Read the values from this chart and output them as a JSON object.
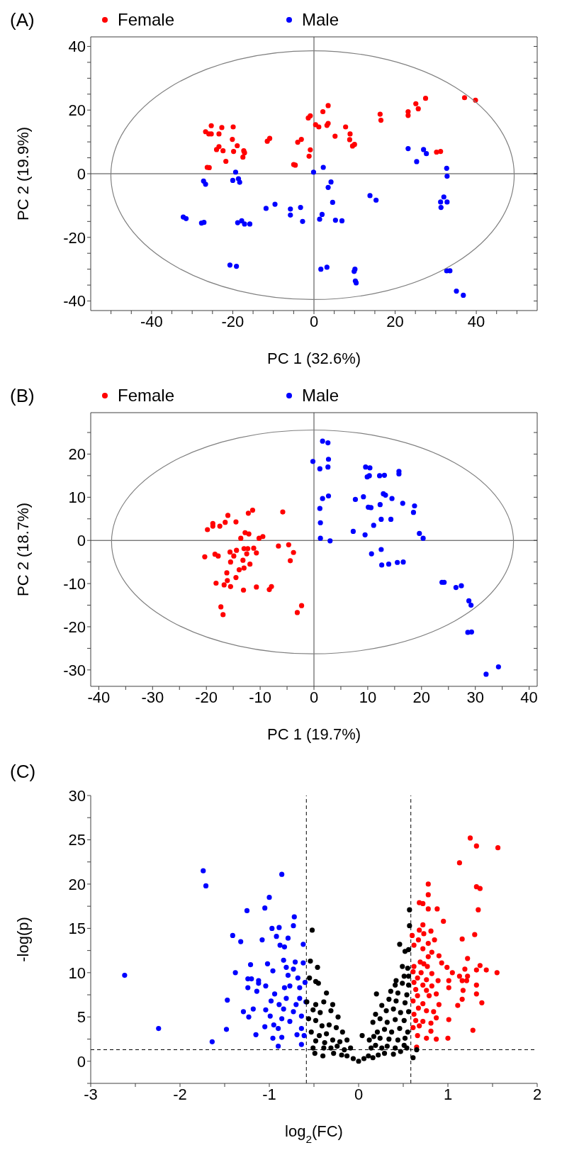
{
  "chart_data": [
    {
      "type": "scatter",
      "title": "(A)",
      "xlabel": "PC 1 (32.6%)",
      "ylabel": "PC 2 (19.9%)",
      "legend": "top",
      "marker": "circle",
      "xlim": [
        -55,
        55
      ],
      "ylim": [
        -43,
        43
      ],
      "xticks": [
        {
          "value": -50,
          "label": null
        },
        {
          "value": -45,
          "label": null
        },
        -40,
        {
          "value": -35,
          "label": null
        },
        {
          "value": -30,
          "label": null
        },
        {
          "value": -25,
          "label": null
        },
        -20,
        {
          "value": -15,
          "label": null
        },
        {
          "value": -10,
          "label": null
        },
        {
          "value": -5,
          "label": null
        },
        0,
        {
          "value": 5,
          "label": null
        },
        {
          "value": 10,
          "label": null
        },
        {
          "value": 15,
          "label": null
        },
        20,
        {
          "value": 25,
          "label": null
        },
        {
          "value": 30,
          "label": null
        },
        {
          "value": 35,
          "label": null
        },
        40,
        {
          "value": 45,
          "label": null
        },
        {
          "value": 50,
          "label": null
        }
      ],
      "yticks": [
        -40,
        {
          "value": -35,
          "label": null
        },
        {
          "value": -30,
          "label": null
        },
        {
          "value": -25,
          "label": null
        },
        -20,
        {
          "value": -15,
          "label": null
        },
        {
          "value": -10,
          "label": null
        },
        {
          "value": -5,
          "label": null
        },
        0,
        {
          "value": 5,
          "label": null
        },
        {
          "value": 10,
          "label": null
        },
        {
          "value": 15,
          "label": null
        },
        20,
        {
          "value": 25,
          "label": null
        },
        {
          "value": 30,
          "label": null
        },
        {
          "value": 35,
          "label": null
        },
        40
      ],
      "ref_lines": [
        {
          "axis": "x",
          "value": 0,
          "color": "#404040"
        },
        {
          "axis": "y",
          "value": 0,
          "color": "#404040"
        }
      ],
      "series": [
        {
          "name": "Female",
          "color": "#ff0000",
          "x": [
            -25.3,
            -26.7,
            -25.9,
            -25.3,
            -22.7,
            -23.4,
            -19.9,
            -20.1,
            -18.9,
            -19.8,
            -24.0,
            -23.4,
            -22.4,
            -21.7,
            -26.3,
            -25.8,
            -17.3,
            -17.1,
            -17.5,
            -11.5,
            -10.9,
            -4.0,
            -3.1,
            -5.0,
            -4.6,
            -1.4,
            -0.9,
            -0.9,
            -1.2,
            0.4,
            1.2,
            2.2,
            3.5,
            3.2,
            3.5,
            5.2,
            7.8,
            8.9,
            8.8,
            9.5,
            10.0,
            16.3,
            16.5,
            23.2,
            23.2,
            25.1,
            25.7,
            27.5,
            30.2,
            31.2,
            37.1,
            39.8
          ],
          "values": [
            15.1,
            13.2,
            12.5,
            12.5,
            14.5,
            12.5,
            14.7,
            10.8,
            8.8,
            7.0,
            7.6,
            8.5,
            7.2,
            3.9,
            2.0,
            1.9,
            7.2,
            6.6,
            5.2,
            10.2,
            11.1,
            9.9,
            10.8,
            2.9,
            2.7,
            17.5,
            18.2,
            7.5,
            5.5,
            15.4,
            14.7,
            19.5,
            21.4,
            15.2,
            15.8,
            11.8,
            14.7,
            12.5,
            10.7,
            8.7,
            9.2,
            18.7,
            16.8,
            19.5,
            18.3,
            22.0,
            20.4,
            23.7,
            6.8,
            7.0,
            23.9,
            23.1
          ]
        },
        {
          "name": "Male",
          "color": "#0000ff",
          "x": [
            -27.2,
            -26.7,
            -19.3,
            -20.0,
            -18.6,
            -18.3,
            -32.2,
            -31.5,
            -27.7,
            -27.1,
            -18.8,
            -17.8,
            -17.1,
            -15.8,
            -20.7,
            -19.1,
            -11.8,
            -9.6,
            -5.8,
            -5.8,
            -3.3,
            -2.8,
            -0.1,
            2.3,
            4.2,
            3.5,
            4.6,
            2.0,
            1.4,
            5.3,
            6.9,
            1.7,
            3.2,
            13.8,
            15.3,
            10.1,
            9.9,
            10.2,
            10.4,
            23.2,
            25.3,
            27.0,
            27.7,
            32.7,
            32.8,
            32.0,
            31.2,
            32.8,
            31.3,
            32.7,
            33.5,
            35.1,
            36.8
          ],
          "values": [
            -2.3,
            -3.3,
            0.5,
            -2.1,
            -1.6,
            -2.7,
            -13.6,
            -14.1,
            -15.5,
            -15.3,
            -15.4,
            -14.8,
            -15.8,
            -15.8,
            -28.7,
            -29.1,
            -10.9,
            -9.6,
            -11.1,
            -13.0,
            -10.6,
            -15.0,
            0.5,
            2.0,
            -2.6,
            -4.3,
            -9.0,
            -12.8,
            -14.3,
            -14.6,
            -14.8,
            -30.0,
            -29.4,
            -6.9,
            -8.3,
            -30.0,
            -30.7,
            -33.7,
            -34.3,
            7.9,
            3.8,
            7.6,
            6.3,
            1.7,
            -0.8,
            -7.3,
            -8.9,
            -8.9,
            -10.6,
            -30.5,
            -30.5,
            -36.9,
            -38.2
          ]
        }
      ]
    },
    {
      "type": "scatter",
      "title": "(B)",
      "xlabel": "PC 1 (19.7%)",
      "ylabel": "PC 2 (18.7%)",
      "legend": "top",
      "marker": "circle",
      "xlim": [
        -41.5,
        41.5
      ],
      "ylim": [
        -33.8,
        29.6
      ],
      "xticks": [
        -40,
        {
          "value": -35,
          "label": null
        },
        -30,
        {
          "value": -25,
          "label": null
        },
        -20,
        {
          "value": -15,
          "label": null
        },
        -10,
        {
          "value": -5,
          "label": null
        },
        0,
        {
          "value": 5,
          "label": null
        },
        10,
        {
          "value": 15,
          "label": null
        },
        20,
        {
          "value": 25,
          "label": null
        },
        30,
        {
          "value": 35,
          "label": null
        },
        40
      ],
      "yticks": [
        -30,
        {
          "value": -25,
          "label": null
        },
        -20,
        {
          "value": -15,
          "label": null
        },
        -10,
        {
          "value": -5,
          "label": null
        },
        0,
        {
          "value": 5,
          "label": null
        },
        10,
        {
          "value": 15,
          "label": null
        },
        20,
        {
          "value": 25,
          "label": null
        }
      ],
      "ref_lines": [
        {
          "axis": "x",
          "value": 0,
          "color": "#404040"
        },
        {
          "axis": "y",
          "value": 0,
          "color": "#404040"
        }
      ],
      "series": [
        {
          "name": "Female",
          "color": "#ff0000",
          "x": [
            -19.8,
            -18.8,
            -18.8,
            -17.5,
            -16.5,
            -16.0,
            -14.5,
            -12.2,
            -11.4,
            -5.8,
            -12.8,
            -12.1,
            -13.6,
            -10.2,
            -9.5,
            -20.3,
            -18.4,
            -17.8,
            -15.6,
            -14.4,
            -14.9,
            -13.0,
            -12.3,
            -12.5,
            -11.2,
            -10.7,
            -6.6,
            -4.7,
            -3.8,
            -4.4,
            -15.5,
            -13.2,
            -13.9,
            -13.0,
            -11.9,
            -16.2,
            -16.1,
            -14.5,
            -18.2,
            -16.7,
            -15.5,
            -13.1,
            -10.7,
            -7.9,
            -8.3,
            -17.3,
            -16.9,
            -2.3,
            -3.1
          ],
          "values": [
            2.5,
            3.9,
            3.3,
            3.3,
            4.2,
            5.8,
            4.3,
            6.3,
            7.0,
            6.6,
            1.8,
            1.5,
            0.5,
            0.5,
            0.9,
            -3.8,
            -3.2,
            -3.6,
            -2.7,
            -2.3,
            -3.6,
            -1.9,
            -1.9,
            -3.1,
            -1.8,
            -2.9,
            -1.3,
            -1.0,
            -2.8,
            -4.7,
            -5.0,
            -4.6,
            -6.8,
            -6.4,
            -5.5,
            -7.5,
            -9.3,
            -8.6,
            -9.9,
            -10.3,
            -10.7,
            -11.5,
            -10.8,
            -10.7,
            -11.4,
            -15.4,
            -17.2,
            -15.1,
            -16.7
          ]
        },
        {
          "name": "Male",
          "color": "#0000ff",
          "x": [
            1.6,
            2.6,
            -0.2,
            2.7,
            1.1,
            2.6,
            9.6,
            10.4,
            9.9,
            10.3,
            12.2,
            13.1,
            15.8,
            15.8,
            1.6,
            2.7,
            7.7,
            9.2,
            12.9,
            13.3,
            14.5,
            10.1,
            10.6,
            12.3,
            16.5,
            18.7,
            18.5,
            1.1,
            1.2,
            11.1,
            12.5,
            14.3,
            7.3,
            9.5,
            1.2,
            3.0,
            19.6,
            20.3,
            10.7,
            12.5,
            12.6,
            13.9,
            15.5,
            16.6,
            23.8,
            24.2,
            26.4,
            27.4,
            28.8,
            29.2,
            28.6,
            29.3,
            32.0,
            34.3
          ],
          "values": [
            23.0,
            22.6,
            18.3,
            18.8,
            16.6,
            17.0,
            17.0,
            16.8,
            14.7,
            15.0,
            15.0,
            15.1,
            16.0,
            15.4,
            9.7,
            10.3,
            9.5,
            10.1,
            10.8,
            10.5,
            9.7,
            7.7,
            7.6,
            8.3,
            8.6,
            8.0,
            6.5,
            7.4,
            4.1,
            3.5,
            4.9,
            4.9,
            2.1,
            1.3,
            0.5,
            -0.1,
            1.6,
            0.5,
            -3.1,
            -2.1,
            -5.7,
            -5.5,
            -5.1,
            -5.0,
            -9.7,
            -9.7,
            -10.9,
            -10.5,
            -14.0,
            -15.0,
            -21.3,
            -21.2,
            -31.0,
            -29.3
          ]
        }
      ]
    },
    {
      "type": "scatter",
      "title": "(C)",
      "xlabel": "log$_{2}$(FC)",
      "ylabel": "-log(p)",
      "marker": "circle",
      "xlim": [
        -3,
        2
      ],
      "ylim": [
        -2.5,
        30
      ],
      "xticks": [
        -3,
        {
          "value": -2.5,
          "label": null
        },
        -2,
        {
          "value": -1.5,
          "label": null
        },
        -1,
        {
          "value": -0.5,
          "label": null
        },
        0,
        {
          "value": 0.5,
          "label": null
        },
        1,
        {
          "value": 1.5,
          "label": null
        },
        2
      ],
      "yticks": [
        {
          "value": -2.5,
          "label": null
        },
        0,
        {
          "value": 2.5,
          "label": null
        },
        5,
        {
          "value": 7.5,
          "label": null
        },
        10,
        {
          "value": 12.5,
          "label": null
        },
        15,
        {
          "value": 17.5,
          "label": null
        },
        20,
        {
          "value": 22.5,
          "label": null
        },
        25,
        {
          "value": 27.5,
          "label": null
        },
        30
      ],
      "ref_lines": [
        {
          "axis": "x",
          "value": -0.585,
          "color": "#000000",
          "line_style": "dashed"
        },
        {
          "axis": "x",
          "value": 0.585,
          "color": "#000000",
          "line_style": "dashed"
        },
        {
          "axis": "y",
          "value": 1.3,
          "color": "#000000",
          "line_style": "dashed"
        }
      ],
      "series": [
        {
          "color": "#0000ff",
          "x": [
            -1.74,
            -1.71,
            -0.86,
            -1.0,
            -1.25,
            -1.05,
            -0.72,
            -0.73,
            -0.97,
            -0.89,
            -1.41,
            -1.32,
            -1.08,
            -0.92,
            -0.79,
            -0.88,
            -0.83,
            -0.62,
            -0.84,
            -1.02,
            -1.21,
            -0.71,
            -0.62,
            -0.81,
            -0.96,
            -0.73,
            -1.38,
            -2.62,
            -0.79,
            -0.68,
            -1.24,
            -1.2,
            -1.12,
            -1.12,
            -1.04,
            -1.24,
            -0.83,
            -0.66,
            -1.14,
            -0.77,
            -0.6,
            -0.94,
            -0.66,
            -0.81,
            -1.47,
            -0.98,
            -0.89,
            -0.7,
            -0.59,
            -1.18,
            -1.04,
            -0.84,
            -0.73,
            -1.29,
            -0.64,
            -1.23,
            -0.99,
            -0.86,
            -0.77,
            -0.95,
            -1.05,
            -0.9,
            -0.64,
            -2.24,
            -1.48,
            -1.15,
            -0.69,
            -0.96,
            -0.86,
            -0.61,
            -1.64,
            -0.64,
            -0.9
          ],
          "values": [
            21.5,
            19.8,
            21.1,
            18.5,
            17.0,
            17.3,
            16.3,
            15.3,
            15.0,
            15.1,
            14.2,
            13.5,
            13.7,
            14.1,
            13.9,
            13.1,
            12.9,
            13.2,
            11.4,
            11.0,
            10.9,
            11.2,
            11.1,
            10.6,
            10.2,
            10.4,
            10.0,
            9.7,
            9.7,
            9.4,
            9.3,
            9.3,
            9.1,
            8.8,
            8.5,
            8.3,
            8.3,
            8.3,
            7.9,
            8.5,
            8.9,
            7.6,
            7.1,
            7.1,
            6.9,
            6.8,
            6.4,
            6.4,
            6.7,
            5.9,
            5.8,
            5.9,
            5.6,
            5.6,
            5.1,
            5.0,
            5.1,
            4.8,
            4.5,
            4.1,
            3.9,
            3.7,
            3.7,
            3.7,
            3.6,
            3.0,
            3.0,
            2.6,
            2.7,
            2.9,
            2.2,
            1.9,
            1.7
          ]
        },
        {
          "color": "#ff0000",
          "x": [
            1.25,
            1.32,
            1.56,
            1.13,
            1.32,
            1.36,
            0.78,
            0.78,
            0.68,
            0.72,
            0.78,
            0.88,
            1.34,
            0.95,
            0.72,
            0.68,
            0.73,
            0.81,
            0.6,
            0.85,
            1.3,
            1.16,
            0.67,
            0.78,
            0.62,
            0.72,
            0.82,
            0.9,
            0.78,
            1.22,
            0.69,
            0.73,
            0.93,
            0.62,
            0.77,
            0.99,
            1.36,
            1.43,
            1.55,
            1.05,
            1.19,
            1.32,
            0.61,
            0.7,
            0.82,
            1.13,
            1.22,
            0.66,
            0.76,
            1.01,
            1.16,
            1.21,
            0.62,
            0.89,
            0.72,
            0.82,
            1.32,
            1.01,
            0.64,
            0.76,
            1.17,
            0.87,
            0.66,
            0.79,
            1.16,
            1.32,
            1.38,
            0.61,
            0.72,
            0.9,
            1.11,
            0.67,
            0.76,
            0.84,
            0.62,
            0.87,
            1.01,
            0.64,
            0.72,
            0.81,
            0.68,
            0.61,
            0.81,
            1.28,
            0.66,
            0.76,
            0.87,
            1.0,
            0.65
          ],
          "values": [
            25.2,
            24.3,
            24.1,
            22.4,
            19.7,
            19.5,
            20.0,
            18.8,
            17.9,
            17.8,
            17.2,
            17.2,
            17.1,
            15.8,
            15.4,
            14.8,
            14.4,
            14.7,
            14.2,
            13.7,
            14.3,
            13.8,
            13.7,
            13.3,
            13.1,
            12.7,
            12.3,
            11.9,
            11.8,
            11.6,
            11.2,
            11.0,
            11.1,
            10.7,
            10.7,
            10.6,
            10.8,
            10.3,
            10.0,
            10.0,
            10.4,
            10.3,
            10.1,
            10.0,
            9.9,
            9.6,
            9.6,
            9.4,
            9.2,
            9.1,
            9.1,
            9.1,
            8.9,
            9.1,
            8.6,
            8.5,
            8.6,
            8.3,
            8.1,
            8.0,
            8.0,
            7.6,
            7.4,
            7.4,
            7.0,
            7.6,
            6.6,
            6.8,
            6.5,
            6.4,
            6.3,
            6.0,
            5.7,
            5.6,
            5.3,
            4.9,
            4.7,
            4.6,
            4.5,
            4.3,
            4.0,
            3.8,
            3.4,
            3.5,
            2.9,
            2.6,
            2.5,
            2.6,
            1.6
          ]
        },
        {
          "color": "#000000",
          "x": [
            -0.52,
            -0.54,
            -0.46,
            -0.55,
            -0.48,
            -0.45,
            -0.36,
            -0.58,
            -0.48,
            -0.39,
            -0.29,
            -0.51,
            -0.43,
            -0.31,
            -0.56,
            -0.48,
            -0.23,
            -0.41,
            -0.33,
            -0.25,
            -0.53,
            -0.44,
            -0.36,
            -0.18,
            -0.48,
            -0.38,
            -0.29,
            -0.21,
            -0.13,
            -0.51,
            -0.39,
            -0.31,
            -0.24,
            -0.16,
            -0.09,
            -0.49,
            -0.4,
            -0.28,
            -0.19,
            -0.13,
            -0.06,
            0.0,
            0.04,
            0.06,
            0.11,
            0.16,
            0.22,
            0.29,
            0.39,
            0.47,
            0.54,
            0.61,
            0.65,
            0.14,
            0.19,
            0.26,
            0.32,
            0.41,
            0.51,
            0.12,
            0.17,
            0.24,
            0.34,
            0.44,
            0.52,
            0.21,
            0.29,
            0.37,
            0.46,
            0.55,
            0.16,
            0.24,
            0.32,
            0.41,
            0.51,
            0.19,
            0.26,
            0.31,
            0.39,
            0.47,
            0.56,
            0.2,
            0.34,
            0.42,
            0.52,
            0.36,
            0.44,
            0.54,
            0.41,
            0.49,
            0.56,
            0.42,
            0.51,
            0.56,
            0.49,
            0.55,
            0.46,
            0.52,
            0.56,
            0.57,
            0.57
          ],
          "values": [
            14.8,
            11.3,
            10.6,
            9.4,
            9.0,
            8.8,
            7.7,
            6.7,
            6.4,
            6.7,
            6.4,
            5.8,
            5.5,
            5.7,
            4.8,
            4.6,
            5.0,
            4.0,
            4.1,
            3.8,
            3.3,
            2.9,
            3.1,
            3.3,
            2.3,
            2.1,
            2.4,
            2.2,
            2.4,
            1.5,
            1.5,
            1.5,
            1.7,
            1.3,
            1.5,
            0.9,
            0.6,
            0.9,
            0.7,
            0.6,
            0.3,
            0.0,
            2.9,
            0.3,
            0.6,
            0.4,
            0.7,
            0.9,
            0.8,
            1.1,
            1.5,
            0.4,
            1.3,
            1.5,
            1.8,
            1.5,
            1.7,
            1.5,
            1.8,
            2.4,
            2.8,
            2.6,
            2.5,
            2.4,
            2.6,
            3.3,
            3.6,
            3.3,
            3.7,
            3.3,
            4.4,
            4.8,
            4.4,
            4.7,
            4.6,
            5.3,
            6.3,
            5.7,
            5.9,
            5.5,
            5.6,
            7.6,
            7.0,
            6.8,
            6.6,
            7.9,
            7.7,
            7.5,
            8.6,
            8.8,
            8.6,
            9.1,
            9.6,
            9.6,
            10.7,
            10.5,
            13.2,
            12.4,
            12.6,
            15.3,
            17.1
          ]
        }
      ]
    }
  ]
}
